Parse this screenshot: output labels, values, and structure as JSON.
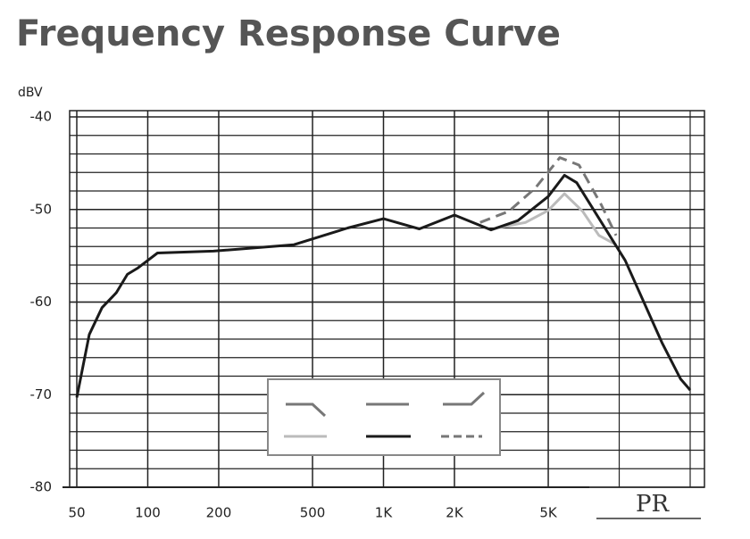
{
  "chart_data": {
    "type": "line",
    "title": "Frequency Response Curve",
    "y_label": "dBV",
    "x_scale": "log",
    "xlim": [
      50,
      20000
    ],
    "ylim": [
      -80,
      -40
    ],
    "xticks": [
      50,
      100,
      200,
      {
        "value": 1000,
        "label": "1K"
      },
      {
        "value": 2000,
        "label": "2K"
      },
      {
        "value": 5000,
        "label": "5K"
      },
      500
    ],
    "x_minor_grid": [
      10000,
      20000
    ],
    "yticks": [
      -40,
      -50,
      -60,
      -70,
      -80
    ],
    "y_minor_step": 2,
    "grid": true,
    "series": [
      {
        "color": "#bbbbbb",
        "dash": false,
        "x": [
          3000,
          4000,
          5000,
          5860,
          7000,
          8200,
          9700
        ],
        "values": [
          -52,
          -51.4,
          -50.1,
          -48.3,
          -50.2,
          -52.8,
          -53.8
        ]
      },
      {
        "color": "#777777",
        "dash": true,
        "x": [
          2570,
          3400,
          4400,
          5600,
          6750,
          8400,
          9700
        ],
        "values": [
          -51.4,
          -50.2,
          -47.7,
          -44.4,
          -45.2,
          -49.5,
          -52.8
        ]
      },
      {
        "color": "#1a1a1a",
        "dash": false,
        "x": [
          50,
          56.5,
          64,
          73.5,
          82,
          91,
          100,
          110,
          190,
          417,
          705,
          1000,
          1420,
          2000,
          2860,
          3720,
          5000,
          5860,
          6600,
          10600,
          15200,
          18200,
          20000
        ],
        "values": [
          -70.3,
          -63.5,
          -60.6,
          -59,
          -57,
          -56.3,
          -55.5,
          -54.7,
          -54.5,
          -53.8,
          -52,
          -51,
          -52.1,
          -50.6,
          -52.2,
          -51.2,
          -48.6,
          -46.3,
          -47.1,
          -55.5,
          -64.4,
          -68.3,
          -69.5
        ]
      }
    ],
    "logo": "PR"
  }
}
